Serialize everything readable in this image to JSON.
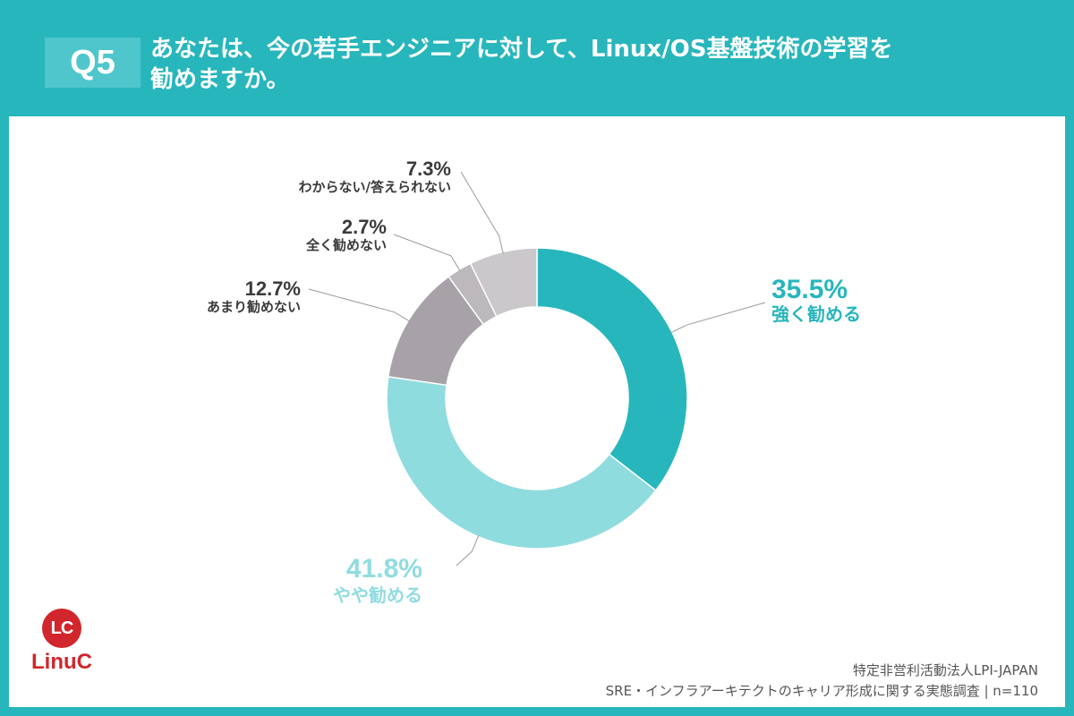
{
  "header": {
    "badge": "Q5",
    "title_line1": "あなたは、今の若手エンジニアに対して、Linux/OS基盤技術の学習を",
    "title_line2": "勧めますか。"
  },
  "chart_data": {
    "type": "pie",
    "donut": true,
    "slices": [
      {
        "label": "強く勧める",
        "value": 35.5,
        "pct_text": "35.5%",
        "color": "#27b6bc",
        "text_color": "#27b6bc"
      },
      {
        "label": "やや勧める",
        "value": 41.8,
        "pct_text": "41.8%",
        "color": "#8fdcdf",
        "text_color": "#8fdcdf"
      },
      {
        "label": "あまり勧めない",
        "value": 12.7,
        "pct_text": "12.7%",
        "color": "#a7a2a7",
        "text_color": "#3a3a3a"
      },
      {
        "label": "全く勧めない",
        "value": 2.7,
        "pct_text": "2.7%",
        "color": "#bcb8bc",
        "text_color": "#3a3a3a"
      },
      {
        "label": "わからない/答えられない",
        "value": 7.3,
        "pct_text": "7.3%",
        "color": "#cbc8cb",
        "text_color": "#3a3a3a"
      }
    ]
  },
  "logo": {
    "mark": "LC",
    "name": "LinuC"
  },
  "footer": {
    "org": "特定非営利活動法人LPI-JAPAN",
    "survey": "SRE・インフラアーキテクトのキャリア形成に関する実態調査 | n=110"
  }
}
